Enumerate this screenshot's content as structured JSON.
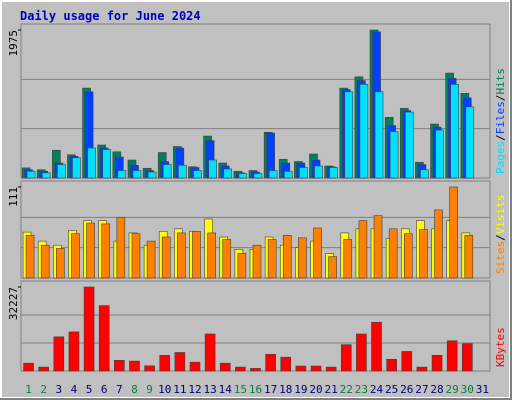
{
  "chart_data": {
    "type": "bar",
    "title": "Daily usage for June 2024",
    "categories": [
      "1",
      "2",
      "3",
      "4",
      "5",
      "6",
      "7",
      "8",
      "9",
      "10",
      "11",
      "12",
      "13",
      "14",
      "15",
      "16",
      "17",
      "18",
      "19",
      "20",
      "21",
      "22",
      "23",
      "24",
      "25",
      "26",
      "27",
      "28",
      "29",
      "30",
      "31"
    ],
    "x_label_colors": [
      "#008040",
      "#008040",
      "#000080",
      "#000080",
      "#000080",
      "#000080",
      "#000080",
      "#008040",
      "#008040",
      "#000080",
      "#000080",
      "#000080",
      "#000080",
      "#000080",
      "#008040",
      "#008040",
      "#000080",
      "#000080",
      "#000080",
      "#000080",
      "#000080",
      "#008040",
      "#008040",
      "#000080",
      "#000080",
      "#000080",
      "#000080",
      "#000080",
      "#008040",
      "#008040",
      "#000080"
    ],
    "legend_separator": "/",
    "grid": true,
    "panels": [
      {
        "ylim": [
          0,
          1975
        ],
        "yticks": [
          1975
        ],
        "series": [
          {
            "name": "Hits",
            "color": "#00805c",
            "values": [
              135,
              110,
              370,
              310,
              1200,
              440,
              350,
              240,
              130,
              340,
              420,
              150,
              560,
              200,
              90,
              100,
              610,
              250,
              220,
              320,
              160,
              1200,
              1350,
              1975,
              810,
              930,
              210,
              720,
              1400,
              1130,
              null
            ]
          },
          {
            "name": "Files",
            "color": "#0040ff",
            "values": [
              110,
              90,
              200,
              290,
              1150,
              400,
              280,
              170,
              100,
              220,
              400,
              140,
              500,
              160,
              70,
              80,
              600,
              200,
              200,
              240,
              150,
              1180,
              1300,
              1950,
              700,
              900,
              180,
              680,
              1330,
              1070,
              null
            ]
          },
          {
            "name": "Pages",
            "color": "#00e0ff",
            "values": [
              90,
              70,
              180,
              270,
              400,
              380,
              100,
              100,
              80,
              180,
              170,
              100,
              240,
              120,
              60,
              60,
              100,
              90,
              140,
              160,
              140,
              1150,
              1250,
              1150,
              620,
              880,
              110,
              640,
              1250,
              950,
              null
            ]
          }
        ]
      },
      {
        "ylim": [
          0,
          111
        ],
        "yticks": [
          111
        ],
        "series": [
          {
            "name": "Visits",
            "color": "#ffff00",
            "values": [
              56,
              45,
              40,
              58,
              70,
              70,
              45,
              55,
              40,
              57,
              60,
              57,
              72,
              50,
              35,
              35,
              50,
              40,
              37,
              45,
              30,
              55,
              60,
              60,
              48,
              60,
              70,
              60,
              70,
              55,
              null
            ]
          },
          {
            "name": "Sites",
            "color": "#ff8000",
            "values": [
              52,
              40,
              36,
              54,
              67,
              66,
              74,
              54,
              45,
              50,
              55,
              57,
              55,
              47,
              30,
              40,
              47,
              52,
              49,
              61,
              26,
              47,
              70,
              76,
              60,
              54,
              59,
              83,
              111,
              52,
              null
            ]
          }
        ]
      },
      {
        "ylim": [
          0,
          32227
        ],
        "yticks": [
          32227
        ],
        "series": [
          {
            "name": "KBytes",
            "color": "#ff0000",
            "values": [
              3000,
              1500,
              13100,
              15000,
              32227,
              25100,
              4100,
              3800,
              2000,
              6000,
              7100,
              3400,
              14200,
              3000,
              1500,
              1000,
              6400,
              5300,
              1900,
              1900,
              1500,
              10100,
              14200,
              18700,
              4500,
              7500,
              1500,
              6000,
              11600,
              10500,
              null
            ]
          }
        ]
      }
    ]
  }
}
